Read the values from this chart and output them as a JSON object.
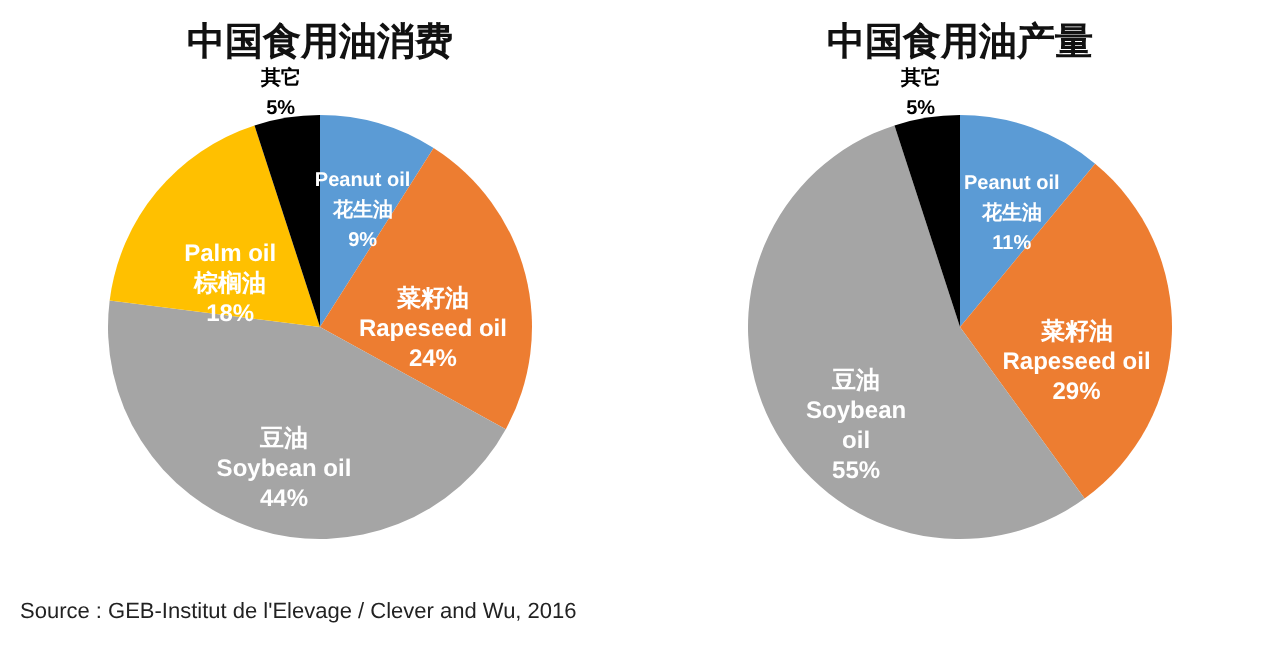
{
  "chart_data": [
    {
      "type": "pie",
      "title": "中国食用油消费",
      "categories": [
        "Peanut oil\n花生油",
        "菜籽油\nRapeseed oil",
        "豆油\nSoybean oil",
        "Palm oil\n棕榈油",
        "其它"
      ],
      "values": [
        9,
        24,
        44,
        18,
        5
      ],
      "value_labels": [
        "9%",
        "24%",
        "44%",
        "18%",
        "5%"
      ],
      "colors": [
        "#5b9bd5",
        "#ed7d31",
        "#a5a5a5",
        "#ffc000",
        "#000000"
      ],
      "legend": false,
      "annotations": [
        "Source : GEB-Institut de l'Elevage / Clever and Wu, 2016"
      ]
    },
    {
      "type": "pie",
      "title": "中国食用油产量",
      "categories": [
        "Peanut oil\n花生油",
        "菜籽油\nRapeseed oil",
        "豆油\nSoybean\noil",
        "其它"
      ],
      "values": [
        11,
        29,
        55,
        5
      ],
      "value_labels": [
        "11%",
        "29%",
        "55%",
        "5%"
      ],
      "colors": [
        "#5b9bd5",
        "#ed7d31",
        "#a5a5a5",
        "#000000"
      ],
      "legend": false
    }
  ]
}
